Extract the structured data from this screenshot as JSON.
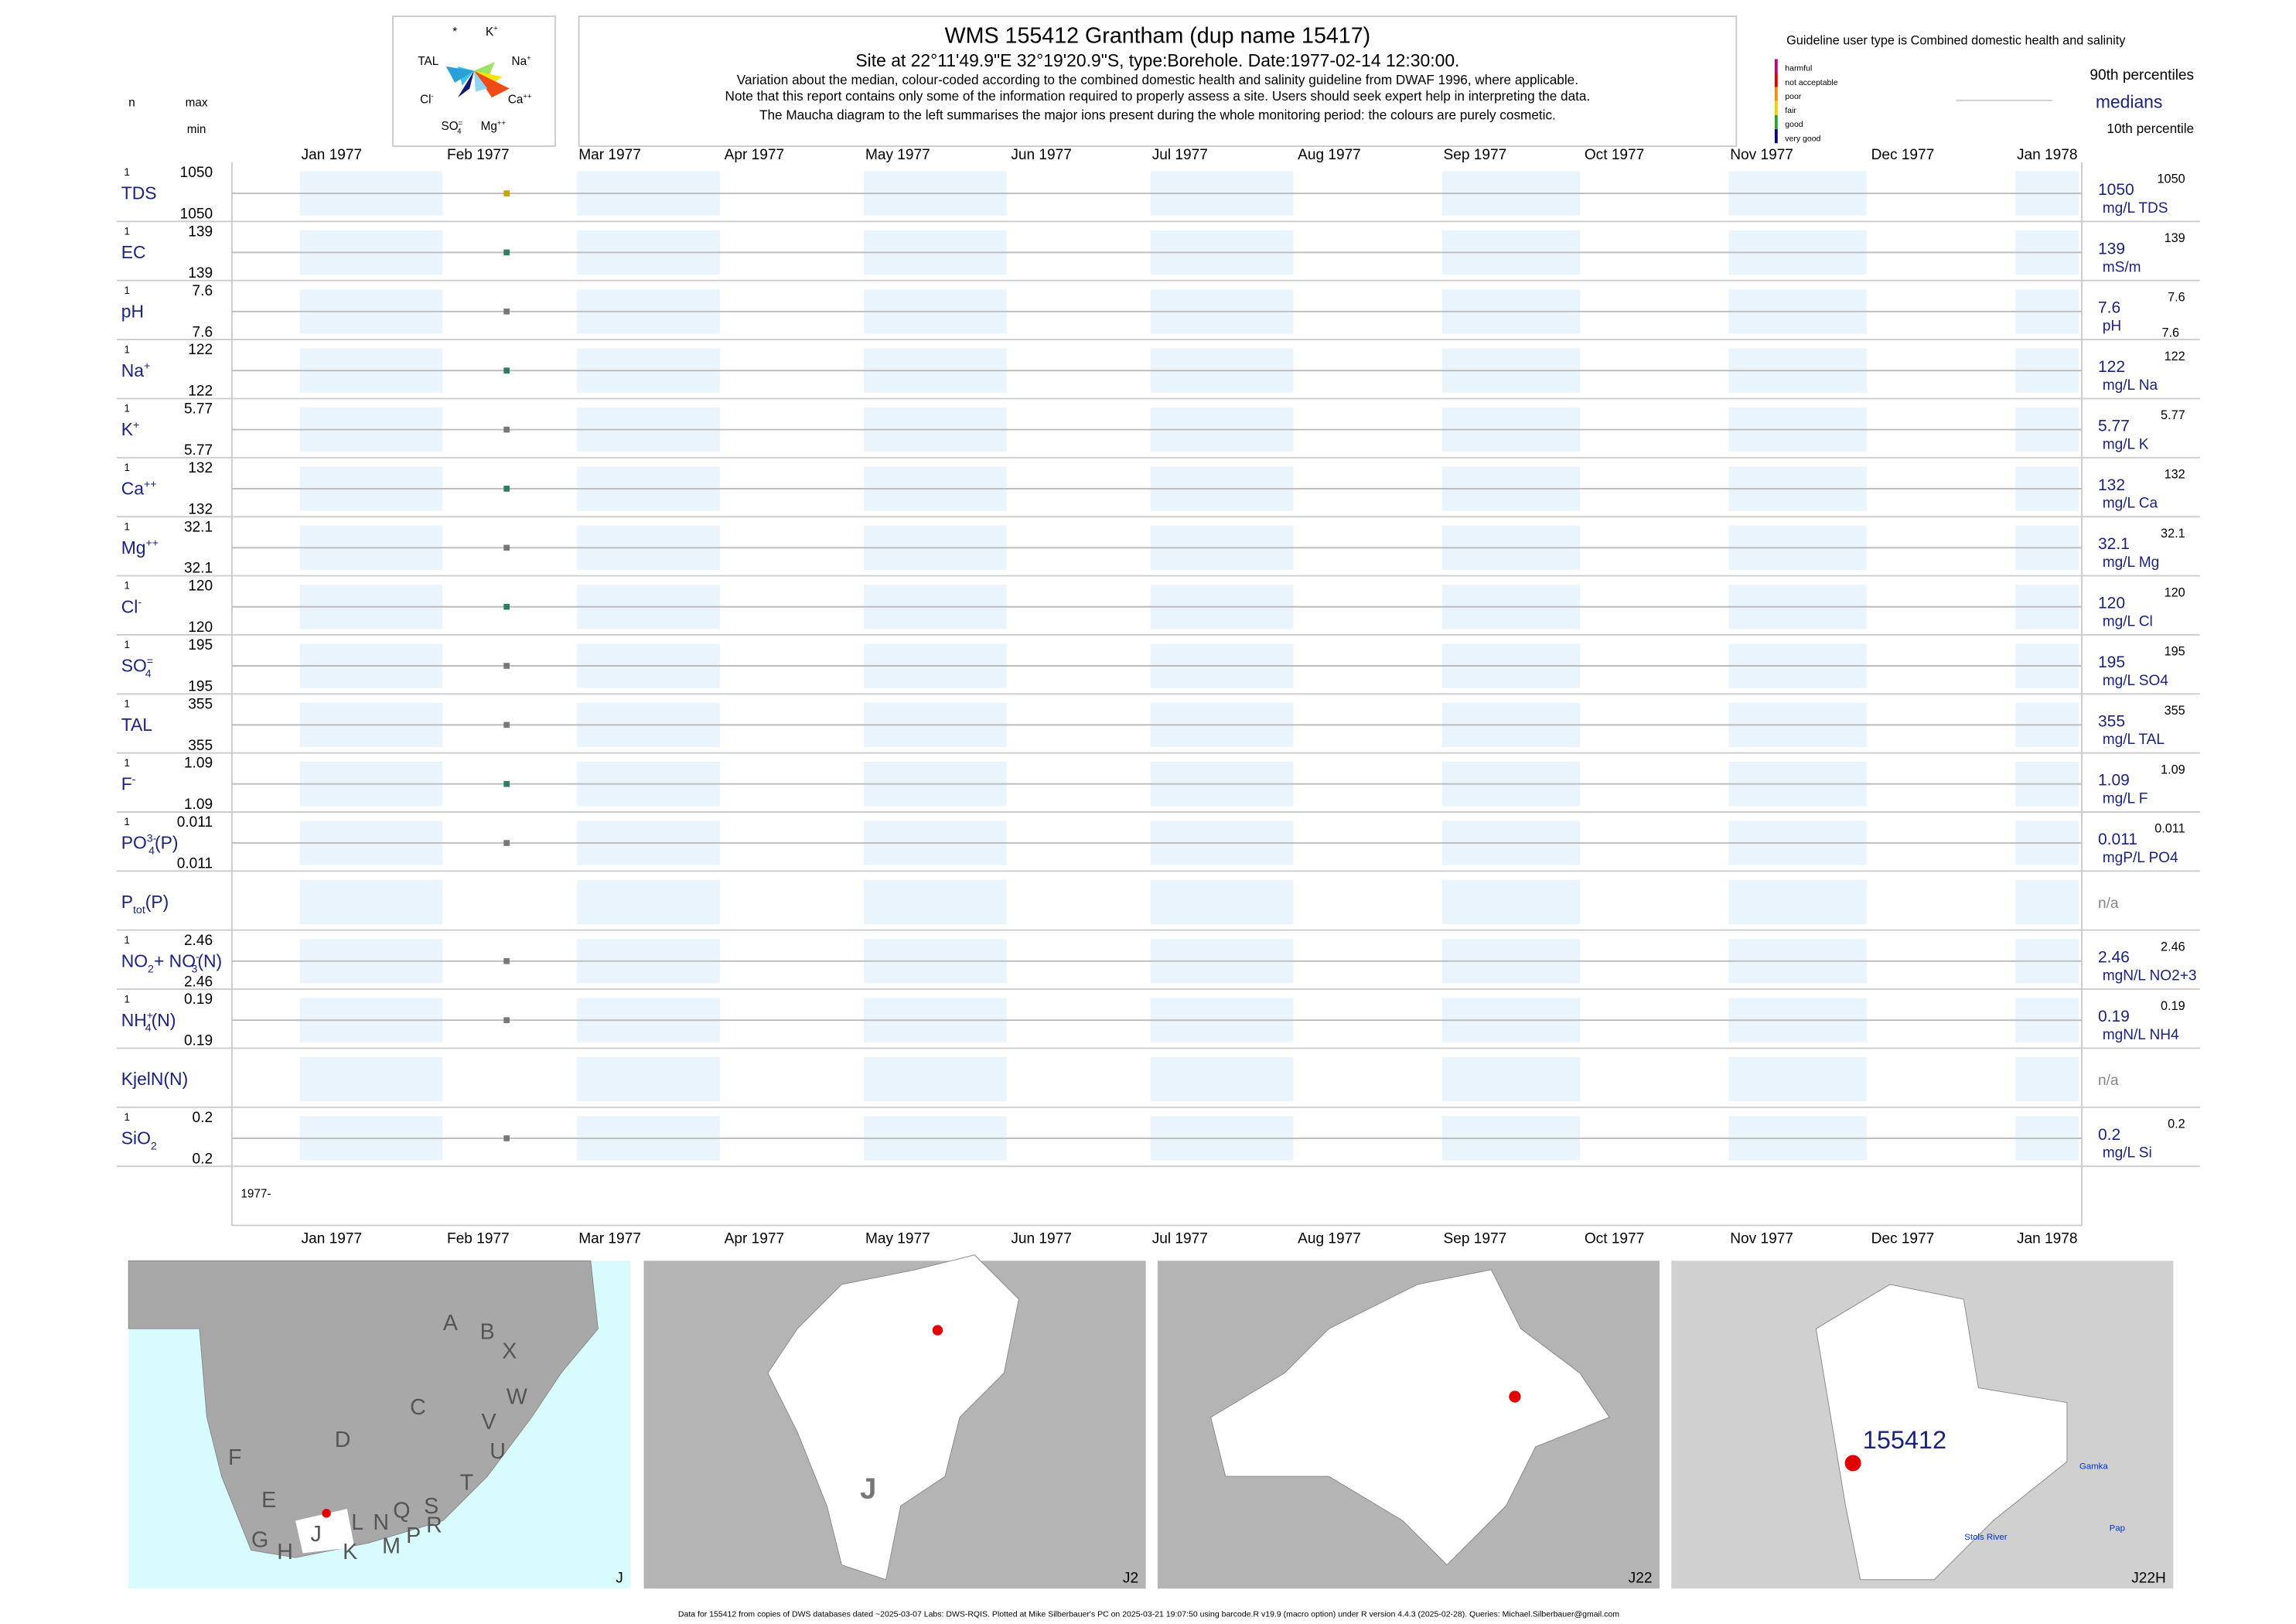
{
  "header": {
    "title": "WMS 155412  Grantham (dup name 15417)",
    "site": "Site at 22°11'49.9\"E 32°19'20.9\"S, type:Borehole. Date:1977-02-14 12:30:00.",
    "notes": [
      "Variation about the median,  colour-coded according to the combined domestic health and salinity guideline from DWAF 1996, where applicable.",
      "Note that this report contains only some of the information required to properly assess a site. Users should seek expert help in interpreting the data.",
      "The Maucha diagram to the left summarises the major ions present during the whole monitoring period: the colours are purely cosmetic."
    ]
  },
  "maucha": {
    "labels": [
      [
        {
          "t": "*"
        }
      ],
      [
        {
          "t": "K"
        },
        {
          "t": "+",
          "s": "sup"
        }
      ],
      [
        {
          "t": "TAL"
        }
      ],
      [
        {
          "t": "Na"
        },
        {
          "t": "+",
          "s": "sup"
        }
      ],
      [
        {
          "t": "Cl"
        },
        {
          "t": "-",
          "s": "sup"
        }
      ],
      [
        {
          "t": "Ca"
        },
        {
          "t": "++",
          "s": "sup"
        }
      ],
      [
        {
          "t": "SO"
        },
        {
          "t": "=",
          "s": "sup"
        },
        {
          "t": "4",
          "s": "sub"
        }
      ],
      [
        {
          "t": "Mg"
        },
        {
          "t": "++",
          "s": "sup"
        }
      ]
    ]
  },
  "left_header": {
    "n": "n",
    "max": "max",
    "min": "min"
  },
  "legend": {
    "guideline": "Guideline user type is Combined domestic health and salinity",
    "classes": [
      {
        "label": "harmful",
        "color": "#c0007a"
      },
      {
        "label": "not acceptable",
        "color": "#e00000"
      },
      {
        "label": "poor",
        "color": "#ff8c00"
      },
      {
        "label": "fair",
        "color": "#f0d000"
      },
      {
        "label": "good",
        "color": "#2ea02e"
      },
      {
        "label": "very good",
        "color": "#00008b"
      }
    ],
    "p90": "90th percentiles",
    "median": "medians",
    "p10": "10th percentile"
  },
  "months": [
    "Jan 1977",
    "Feb 1977",
    "Mar 1977",
    "Apr 1977",
    "May 1977",
    "Jun 1977",
    "Jul 1977",
    "Aug 1977",
    "Sep 1977",
    "Oct 1977",
    "Nov 1977",
    "Dec 1977",
    "Jan 1978"
  ],
  "start_label": "1977-",
  "rows": [
    {
      "name": [
        {
          "t": "TDS"
        }
      ],
      "n": 1,
      "max": 1050,
      "min": 1050,
      "median": 1050,
      "unit": "mg/L TDS",
      "p90": 1050,
      "color": "#c8a000"
    },
    {
      "name": [
        {
          "t": "EC"
        }
      ],
      "n": 1,
      "max": 139,
      "min": 139,
      "median": 139,
      "unit": "mS/m",
      "p90": 139,
      "color": "#2e7d5b"
    },
    {
      "name": [
        {
          "t": "pH"
        }
      ],
      "n": 1,
      "max": 7.6,
      "min": 7.6,
      "median": 7.6,
      "unit": "pH",
      "p90": 7.6,
      "p10": 7.6,
      "color": "#777777"
    },
    {
      "name": [
        {
          "t": "Na"
        },
        {
          "t": "+",
          "s": "sup"
        }
      ],
      "n": 1,
      "max": 122,
      "min": 122,
      "median": 122,
      "unit": "mg/L Na",
      "p90": 122,
      "color": "#2e7d5b"
    },
    {
      "name": [
        {
          "t": "K"
        },
        {
          "t": "+",
          "s": "sup"
        }
      ],
      "n": 1,
      "max": 5.77,
      "min": 5.77,
      "median": 5.77,
      "unit": "mg/L K",
      "p90": 5.77,
      "color": "#777777"
    },
    {
      "name": [
        {
          "t": "Ca"
        },
        {
          "t": "++",
          "s": "sup"
        }
      ],
      "n": 1,
      "max": 132,
      "min": 132,
      "median": 132,
      "unit": "mg/L Ca",
      "p90": 132,
      "color": "#2e7d5b"
    },
    {
      "name": [
        {
          "t": "Mg"
        },
        {
          "t": "++",
          "s": "sup"
        }
      ],
      "n": 1,
      "max": 32.1,
      "min": 32.1,
      "median": 32.1,
      "unit": "mg/L Mg",
      "p90": 32.1,
      "color": "#777777"
    },
    {
      "name": [
        {
          "t": "Cl"
        },
        {
          "t": "-",
          "s": "sup"
        }
      ],
      "n": 1,
      "max": 120,
      "min": 120,
      "median": 120,
      "unit": "mg/L Cl",
      "p90": 120,
      "color": "#2e7d5b"
    },
    {
      "name": [
        {
          "t": "SO"
        },
        {
          "t": "=",
          "s": "sup"
        },
        {
          "t": "4",
          "s": "sub"
        }
      ],
      "n": 1,
      "max": 195,
      "min": 195,
      "median": 195,
      "unit": "mg/L SO4",
      "p90": 195,
      "color": "#777777"
    },
    {
      "name": [
        {
          "t": "TAL"
        }
      ],
      "n": 1,
      "max": 355,
      "min": 355,
      "median": 355,
      "unit": "mg/L TAL",
      "p90": 355,
      "color": "#777777"
    },
    {
      "name": [
        {
          "t": "F"
        },
        {
          "t": "-",
          "s": "sup"
        }
      ],
      "n": 1,
      "max": 1.09,
      "min": 1.09,
      "median": 1.09,
      "unit": "mg/L F",
      "p90": 1.09,
      "color": "#2e7d5b"
    },
    {
      "name": [
        {
          "t": "PO"
        },
        {
          "t": "3-",
          "s": "sup"
        },
        {
          "t": "4",
          "s": "sub"
        },
        {
          "t": "(P)"
        }
      ],
      "n": 1,
      "max": 0.011,
      "min": 0.011,
      "median": 0.011,
      "unit": "mgP/L PO4",
      "p90": 0.011,
      "color": "#777777"
    },
    {
      "name": [
        {
          "t": "P"
        },
        {
          "t": "tot",
          "s": "sub"
        },
        {
          "t": "(P)"
        }
      ],
      "na": "n/a"
    },
    {
      "name": [
        {
          "t": "NO"
        },
        {
          "t": "2",
          "s": "sub"
        },
        {
          "t": "+ NO"
        },
        {
          "t": "-",
          "s": "sup"
        },
        {
          "t": "3",
          "s": "sub"
        },
        {
          "t": "(N)"
        }
      ],
      "n": 1,
      "max": 2.46,
      "min": 2.46,
      "median": 2.46,
      "unit": "mgN/L NO2+3",
      "p90": 2.46,
      "color": "#777777"
    },
    {
      "name": [
        {
          "t": "NH"
        },
        {
          "t": "+",
          "s": "sup"
        },
        {
          "t": "4",
          "s": "sub"
        },
        {
          "t": "(N)"
        }
      ],
      "n": 1,
      "max": 0.19,
      "min": 0.19,
      "median": 0.19,
      "unit": "mgN/L NH4",
      "p90": 0.19,
      "color": "#777777"
    },
    {
      "name": [
        {
          "t": "KjelN(N)"
        }
      ],
      "na": "n/a"
    },
    {
      "name": [
        {
          "t": "SiO"
        },
        {
          "t": "2",
          "s": "sub"
        }
      ],
      "n": 1,
      "max": 0.2,
      "min": 0.2,
      "median": 0.2,
      "unit": "mg/L Si",
      "p90": 0.2,
      "color": "#777777"
    }
  ],
  "maps": [
    {
      "label": "J",
      "places": [
        "A",
        "B",
        "X",
        "W",
        "C",
        "D",
        "V",
        "U",
        "T",
        "F",
        "E",
        "G",
        "H",
        "J",
        "K",
        "L",
        "N",
        "Q",
        "M",
        "P",
        "S",
        "R"
      ]
    },
    {
      "label": "J2",
      "places": [
        "J"
      ]
    },
    {
      "label": "J22",
      "places": []
    },
    {
      "label": "J22H",
      "places": [
        "155412",
        "Gamka",
        "Pap",
        "Stols River"
      ]
    }
  ],
  "footer": "Data for 155412 from copies of DWS databases dated ~2025-03-07 Labs: DWS-RQIS. Plotted at Mike Silberbauer's PC on 2025-03-21 19:07:50 using barcode.R v19.9 (macro option) under R version 4.4.3 (2025-02-28). Queries: Michael.Silberbauer@gmail.com"
}
